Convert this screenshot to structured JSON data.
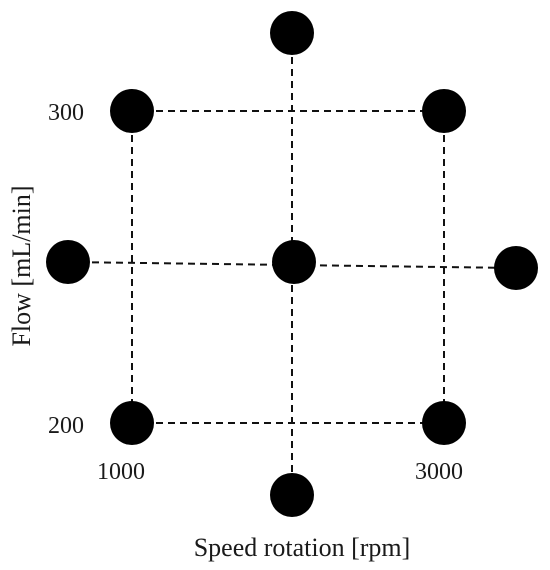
{
  "axes": {
    "x_label": "Speed rotation [rpm]",
    "y_label": "Flow [mL/min]",
    "x_tick_labels": [
      "1000",
      "3000"
    ],
    "y_tick_labels": [
      "300",
      "200"
    ]
  },
  "design_points": [
    {
      "id": "axial-top",
      "kind": "axial"
    },
    {
      "id": "corner-top-left",
      "kind": "factorial"
    },
    {
      "id": "corner-top-right",
      "kind": "factorial"
    },
    {
      "id": "axial-left",
      "kind": "axial"
    },
    {
      "id": "center",
      "kind": "center"
    },
    {
      "id": "axial-right",
      "kind": "axial"
    },
    {
      "id": "corner-bottom-left",
      "kind": "factorial"
    },
    {
      "id": "corner-bottom-right",
      "kind": "factorial"
    },
    {
      "id": "axial-bottom",
      "kind": "axial"
    }
  ],
  "colors": {
    "points": "#000000",
    "lines": "#111111",
    "text": "#1a1a1a"
  }
}
